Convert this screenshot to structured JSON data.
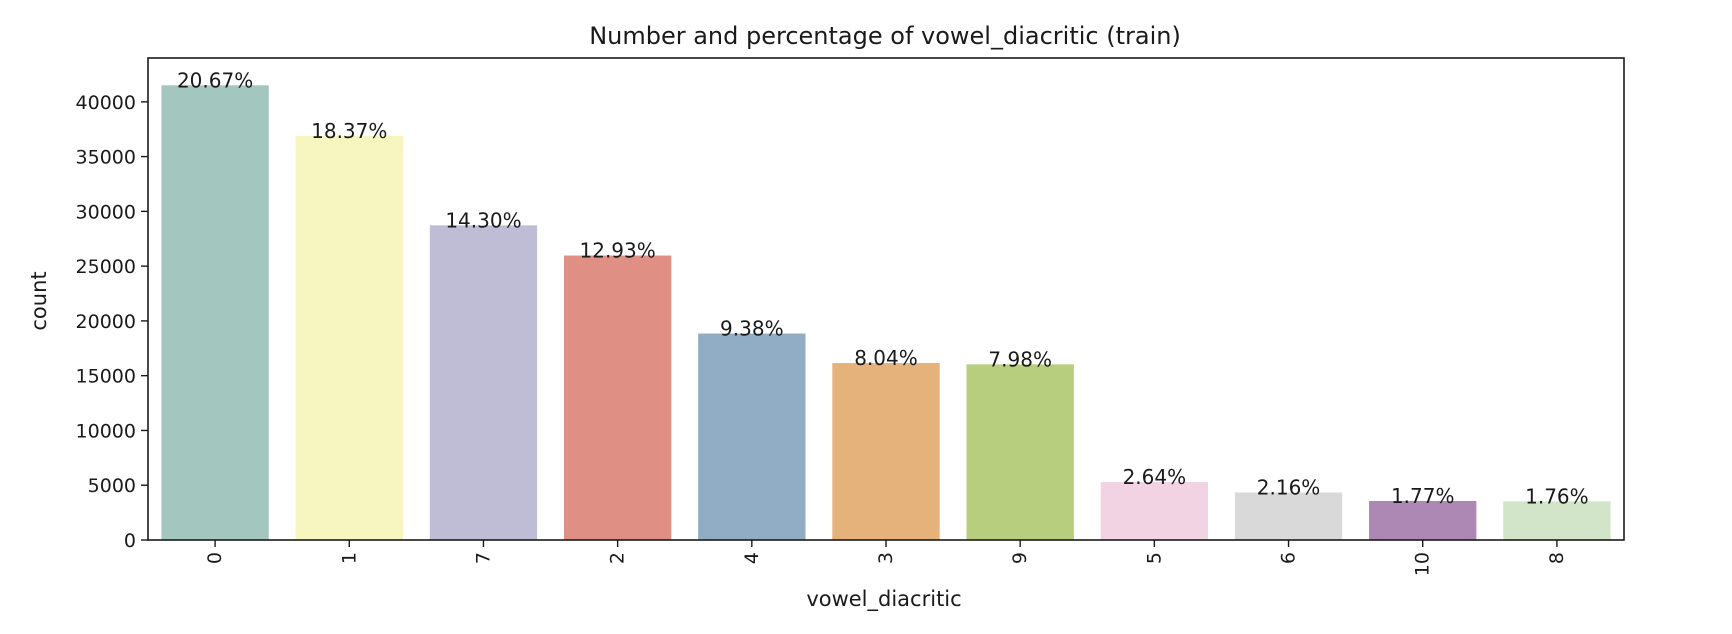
{
  "chart_data": {
    "type": "bar",
    "title": "Number and percentage of vowel_diacritic (train)",
    "xlabel": "vowel_diacritic",
    "ylabel": "count",
    "ylim": [
      0,
      44000
    ],
    "yticks": [
      0,
      5000,
      10000,
      15000,
      20000,
      25000,
      30000,
      35000,
      40000
    ],
    "grid": false,
    "categories": [
      "0",
      "1",
      "7",
      "2",
      "4",
      "3",
      "9",
      "5",
      "6",
      "10",
      "8"
    ],
    "values": [
      41508,
      36886,
      28723,
      25967,
      18848,
      16152,
      16032,
      5297,
      4336,
      3563,
      3532
    ],
    "percent_labels": [
      "20.67%",
      "18.37%",
      "14.30%",
      "12.93%",
      "9.38%",
      "8.04%",
      "7.98%",
      "2.64%",
      "2.16%",
      "1.77%",
      "1.76%"
    ],
    "colors": [
      "#a3c7be",
      "#f7f6c0",
      "#bfbdd6",
      "#df8f84",
      "#91adc6",
      "#e5b27b",
      "#b7ce7f",
      "#f2d3e3",
      "#d9d9d9",
      "#ad88b5",
      "#d3e5c8"
    ]
  }
}
